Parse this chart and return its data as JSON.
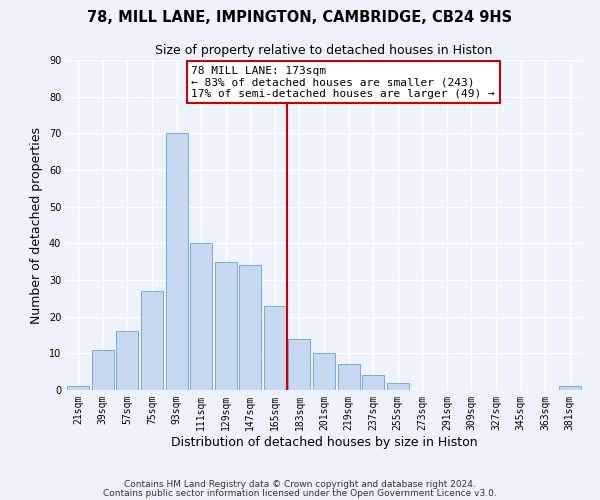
{
  "title": "78, MILL LANE, IMPINGTON, CAMBRIDGE, CB24 9HS",
  "subtitle": "Size of property relative to detached houses in Histon",
  "xlabel": "Distribution of detached houses by size in Histon",
  "ylabel": "Number of detached properties",
  "bar_labels": [
    "21sqm",
    "39sqm",
    "57sqm",
    "75sqm",
    "93sqm",
    "111sqm",
    "129sqm",
    "147sqm",
    "165sqm",
    "183sqm",
    "201sqm",
    "219sqm",
    "237sqm",
    "255sqm",
    "273sqm",
    "291sqm",
    "309sqm",
    "327sqm",
    "345sqm",
    "363sqm",
    "381sqm"
  ],
  "bar_values": [
    1,
    11,
    16,
    27,
    70,
    40,
    35,
    34,
    23,
    14,
    10,
    7,
    4,
    2,
    0,
    0,
    0,
    0,
    0,
    0,
    1
  ],
  "bar_color": "#c6d9f0",
  "bar_edge_color": "#7aaadb",
  "vline_color": "#cc0000",
  "annotation_text": "78 MILL LANE: 173sqm\n← 83% of detached houses are smaller (243)\n17% of semi-detached houses are larger (49) →",
  "annotation_box_edge": "#cc0000",
  "ylim": [
    0,
    90
  ],
  "yticks": [
    0,
    10,
    20,
    30,
    40,
    50,
    60,
    70,
    80,
    90
  ],
  "footer1": "Contains HM Land Registry data © Crown copyright and database right 2024.",
  "footer2": "Contains public sector information licensed under the Open Government Licence v3.0.",
  "bg_color": "#eef3fb",
  "grid_color": "#ffffff",
  "title_fontsize": 10.5,
  "subtitle_fontsize": 9,
  "tick_fontsize": 7,
  "label_fontsize": 9,
  "annotation_fontsize": 8,
  "footer_fontsize": 6.5
}
